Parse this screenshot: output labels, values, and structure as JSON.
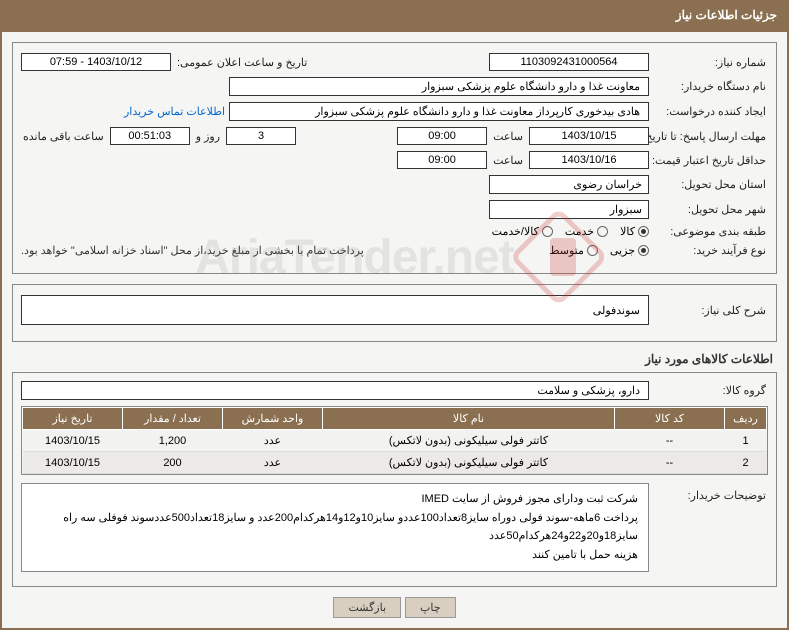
{
  "header": {
    "title": "جزئیات اطلاعات نیاز"
  },
  "form": {
    "need_no_label": "شماره نیاز:",
    "need_no": "1103092431000564",
    "ann_datetime_label": "تاریخ و ساعت اعلان عمومی:",
    "ann_datetime": "1403/10/12 - 07:59",
    "buyer_org_label": "نام دستگاه خریدار:",
    "buyer_org": "معاونت غذا و دارو   دانشگاه علوم پزشکی سبزوار",
    "requester_label": "ایجاد کننده درخواست:",
    "requester": "هادی بیدخوری کارپرداز معاونت غذا و دارو   دانشگاه علوم پزشکی سبزوار",
    "contact_link": "اطلاعات تماس خریدار",
    "reply_deadline_label": "مهلت ارسال پاسخ: تا تاریخ:",
    "reply_deadline_date": "1403/10/15",
    "time_label": "ساعت",
    "reply_deadline_time": "09:00",
    "days_and": "روز و",
    "days_val": "3",
    "remaining_label": "ساعت باقی مانده",
    "remaining_time": "00:51:03",
    "min_validity_label": "حداقل تاریخ اعتبار قیمت: تا تاریخ:",
    "min_validity_date": "1403/10/16",
    "min_validity_time": "09:00",
    "delivery_province_label": "استان محل تحویل:",
    "delivery_province": "خراسان رضوی",
    "delivery_city_label": "شهر محل تحویل:",
    "delivery_city": "سبزوار",
    "category_label": "طبقه بندی موضوعی:",
    "cat_goods": "کالا",
    "cat_service": "خدمت",
    "cat_goods_service": "کالا/خدمت",
    "process_label": "نوع فرآیند خرید:",
    "proc_minor": "جزیی",
    "proc_medium": "متوسط",
    "payment_note": "پرداخت تمام با بخشی از مبلغ خرید،از محل \"اسناد خزانه اسلامی\" خواهد بود.",
    "need_summary_label": "شرح کلی نیاز:",
    "need_summary": "سوندفولی",
    "goods_info_title": "اطلاعات کالاهای مورد نیاز",
    "goods_group_label": "گروه کالا:",
    "goods_group": "دارو، پزشکی و سلامت",
    "buyer_notes_label": "توضیحات خریدار:",
    "buyer_notes_l1": "شرکت ثبت ودارای مجوز فروش از سایت IMED",
    "buyer_notes_l2": "پرداخت 6ماهه-سوند فولی دوراه سایز8تعداد100عددو سایز10و12و14هرکدام200عدد و سایز18تعداد500عددسوند فوفلی سه راه سایز18و20و22و24هرکدام50عدد",
    "buyer_notes_l3": "هزینه حمل با تامین کنند"
  },
  "table": {
    "headers": {
      "row": "ردیف",
      "code": "کد کالا",
      "name": "نام کالا",
      "unit": "واحد شمارش",
      "qty": "تعداد / مقدار",
      "date": "تاریخ نیاز"
    },
    "rows": [
      {
        "row": "1",
        "code": "--",
        "name": "کاتتر فولی سیلیکونی (بدون لاتکس)",
        "unit": "عدد",
        "qty": "1,200",
        "date": "1403/10/15"
      },
      {
        "row": "2",
        "code": "--",
        "name": "کاتتر فولی سیلیکونی (بدون لاتکس)",
        "unit": "عدد",
        "qty": "200",
        "date": "1403/10/15"
      }
    ]
  },
  "buttons": {
    "print": "چاپ",
    "back": "بازگشت"
  },
  "watermark": "AriaTender.net"
}
